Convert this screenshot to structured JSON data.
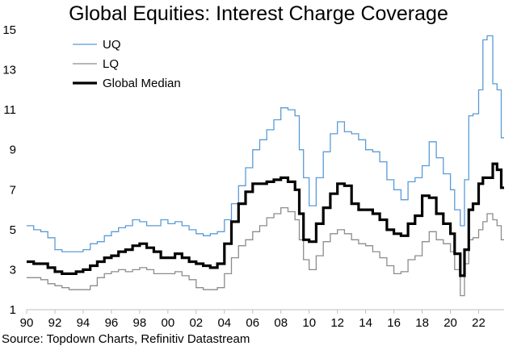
{
  "chart_data": {
    "type": "line",
    "title": "Global Equities: Interest Charge Coverage",
    "source": "Source: Topdown Charts, Refinitiv Datastream",
    "xlabel": "",
    "ylabel": "",
    "xlim": [
      1990,
      2023.8
    ],
    "ylim": [
      1,
      15
    ],
    "x_ticks": [
      1990,
      1992,
      1994,
      1996,
      1998,
      2000,
      2002,
      2004,
      2006,
      2008,
      2010,
      2012,
      2014,
      2016,
      2018,
      2020,
      2022
    ],
    "x_tick_labels": [
      "90",
      "92",
      "94",
      "96",
      "98",
      "00",
      "02",
      "04",
      "06",
      "08",
      "10",
      "12",
      "14",
      "16",
      "18",
      "20",
      "22"
    ],
    "y_ticks": [
      1,
      3,
      5,
      7,
      9,
      11,
      13,
      15
    ],
    "y_tick_labels": [
      "1",
      "3",
      "5",
      "7",
      "9",
      "11",
      "13",
      "15"
    ],
    "legend_position": "top-left",
    "series": [
      {
        "name": "UQ",
        "color": "#5b9bd5",
        "style": "thin",
        "x": [
          1990,
          1990.5,
          1991,
          1991.5,
          1992,
          1992.5,
          1993,
          1993.5,
          1994,
          1994.5,
          1995,
          1995.5,
          1996,
          1996.5,
          1997,
          1997.5,
          1998,
          1998.5,
          1999,
          1999.5,
          2000,
          2000.5,
          2001,
          2001.5,
          2002,
          2002.5,
          2003,
          2003.5,
          2004,
          2004.5,
          2005,
          2005.5,
          2006,
          2006.5,
          2007,
          2007.5,
          2008,
          2008.5,
          2009,
          2009.3,
          2009.6,
          2010,
          2010.5,
          2011,
          2011.5,
          2012,
          2012.5,
          2013,
          2013.5,
          2014,
          2014.5,
          2015,
          2015.5,
          2016,
          2016.5,
          2017,
          2017.5,
          2018,
          2018.5,
          2019,
          2019.5,
          2020,
          2020.3,
          2020.7,
          2021,
          2021.3,
          2021.6,
          2022,
          2022.3,
          2022.6,
          2023,
          2023.3,
          2023.6,
          2023.8
        ],
        "values": [
          5.2,
          5.0,
          4.9,
          4.6,
          4.0,
          3.9,
          3.9,
          3.9,
          4.0,
          4.3,
          4.4,
          4.7,
          4.9,
          5.1,
          5.2,
          5.5,
          5.4,
          5.2,
          5.2,
          5.5,
          5.3,
          5.4,
          5.2,
          5.0,
          4.8,
          4.7,
          4.8,
          4.9,
          5.5,
          6.3,
          7.2,
          8.1,
          9.0,
          9.5,
          10.0,
          10.5,
          11.1,
          11.0,
          10.7,
          9.0,
          7.6,
          6.2,
          7.6,
          8.9,
          9.8,
          10.4,
          9.9,
          9.8,
          9.5,
          9.0,
          8.9,
          8.4,
          7.5,
          7.0,
          6.5,
          7.4,
          7.6,
          8.2,
          9.4,
          8.6,
          7.8,
          7.0,
          6.0,
          5.2,
          7.5,
          10.7,
          10.8,
          12.0,
          14.5,
          14.7,
          12.3,
          12.0,
          9.6,
          9.6
        ]
      },
      {
        "name": "LQ",
        "color": "#8c8c8c",
        "style": "thin",
        "x": [
          1990,
          1990.5,
          1991,
          1991.5,
          1992,
          1992.5,
          1993,
          1993.5,
          1994,
          1994.5,
          1995,
          1995.5,
          1996,
          1996.5,
          1997,
          1997.5,
          1998,
          1998.5,
          1999,
          1999.5,
          2000,
          2000.5,
          2001,
          2001.5,
          2002,
          2002.5,
          2003,
          2003.5,
          2004,
          2004.5,
          2005,
          2005.5,
          2006,
          2006.5,
          2007,
          2007.5,
          2008,
          2008.5,
          2009,
          2009.3,
          2009.6,
          2010,
          2010.5,
          2011,
          2011.5,
          2012,
          2012.5,
          2013,
          2013.5,
          2014,
          2014.5,
          2015,
          2015.5,
          2016,
          2016.5,
          2017,
          2017.5,
          2018,
          2018.5,
          2019,
          2019.5,
          2020,
          2020.3,
          2020.7,
          2021,
          2021.3,
          2021.6,
          2022,
          2022.3,
          2022.6,
          2023,
          2023.3,
          2023.6,
          2023.8
        ],
        "values": [
          2.6,
          2.6,
          2.5,
          2.3,
          2.2,
          2.1,
          2.0,
          2.0,
          2.0,
          2.2,
          2.6,
          2.8,
          2.9,
          3.0,
          2.9,
          3.0,
          3.1,
          3.0,
          2.8,
          2.8,
          2.8,
          2.9,
          2.7,
          2.5,
          2.1,
          2.0,
          2.0,
          2.1,
          2.8,
          3.6,
          4.2,
          4.5,
          4.9,
          5.2,
          5.6,
          5.8,
          6.1,
          5.9,
          5.5,
          4.5,
          3.5,
          3.0,
          3.7,
          4.4,
          4.8,
          5.0,
          4.8,
          4.5,
          4.3,
          4.2,
          3.9,
          3.6,
          3.2,
          2.8,
          2.9,
          3.5,
          3.7,
          4.4,
          4.9,
          4.5,
          4.3,
          3.9,
          3.0,
          1.7,
          3.3,
          4.5,
          4.6,
          5.0,
          5.4,
          5.8,
          5.5,
          5.2,
          4.5,
          4.5
        ]
      },
      {
        "name": "Global Median",
        "color": "#000000",
        "style": "thick",
        "x": [
          1990,
          1990.5,
          1991,
          1991.5,
          1992,
          1992.5,
          1993,
          1993.5,
          1994,
          1994.5,
          1995,
          1995.5,
          1996,
          1996.5,
          1997,
          1997.5,
          1998,
          1998.5,
          1999,
          1999.5,
          2000,
          2000.5,
          2001,
          2001.5,
          2002,
          2002.5,
          2003,
          2003.5,
          2004,
          2004.5,
          2005,
          2005.5,
          2006,
          2006.5,
          2007,
          2007.5,
          2008,
          2008.5,
          2009,
          2009.3,
          2009.6,
          2010,
          2010.5,
          2011,
          2011.5,
          2012,
          2012.5,
          2013,
          2013.5,
          2014,
          2014.5,
          2015,
          2015.5,
          2016,
          2016.5,
          2017,
          2017.5,
          2018,
          2018.5,
          2019,
          2019.5,
          2020,
          2020.3,
          2020.7,
          2021,
          2021.3,
          2021.6,
          2022,
          2022.3,
          2022.6,
          2023,
          2023.3,
          2023.6,
          2023.8
        ],
        "values": [
          3.4,
          3.3,
          3.3,
          3.1,
          2.9,
          2.8,
          2.8,
          2.9,
          3.0,
          3.2,
          3.4,
          3.6,
          3.7,
          3.9,
          4.0,
          4.2,
          4.3,
          4.1,
          3.9,
          3.6,
          3.6,
          3.8,
          3.6,
          3.4,
          3.3,
          3.2,
          3.1,
          3.3,
          4.3,
          5.4,
          6.3,
          6.9,
          7.3,
          7.3,
          7.4,
          7.5,
          7.6,
          7.4,
          7.0,
          5.8,
          4.5,
          4.4,
          5.3,
          6.1,
          6.8,
          7.3,
          7.2,
          6.3,
          6.0,
          6.0,
          5.8,
          5.5,
          5.0,
          4.8,
          4.7,
          5.3,
          5.7,
          6.7,
          6.6,
          5.8,
          5.3,
          4.8,
          3.8,
          2.7,
          4.0,
          6.0,
          6.3,
          7.3,
          7.6,
          7.6,
          8.3,
          8.0,
          7.1,
          7.1
        ]
      }
    ]
  }
}
